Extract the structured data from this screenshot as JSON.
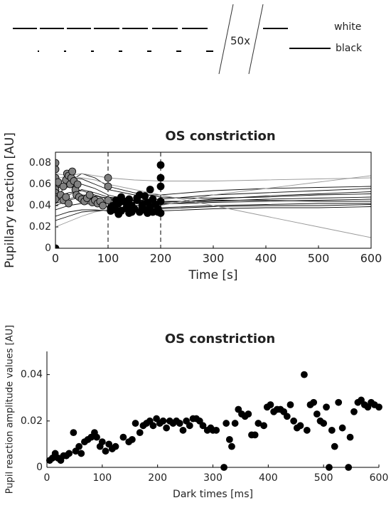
{
  "stimulus": {
    "repeat_label": "50x",
    "labels": [
      "white",
      "black"
    ]
  },
  "chart_data": [
    {
      "type": "line",
      "title": "OS constriction",
      "xlabel": "Time [s]",
      "ylabel": "Pupillary reaction [AU]",
      "xlim": [
        0,
        600
      ],
      "ylim": [
        0,
        0.09
      ],
      "xticks": [
        0,
        100,
        200,
        300,
        400,
        500,
        600
      ],
      "yticks": [
        0,
        0.02,
        0.04,
        0.06,
        0.08
      ],
      "vlines": [
        100,
        200
      ],
      "x": [
        0,
        25,
        50,
        75,
        100,
        150,
        200,
        250,
        300,
        400,
        500,
        600
      ],
      "series": [
        {
          "color": "#111111",
          "values": [
            0.044,
            0.05,
            0.055,
            0.052,
            0.048,
            0.045,
            0.046,
            0.048,
            0.05,
            0.052,
            0.054,
            0.056
          ]
        },
        {
          "color": "#111111",
          "values": [
            0.04,
            0.045,
            0.048,
            0.046,
            0.042,
            0.04,
            0.041,
            0.043,
            0.044,
            0.046,
            0.047,
            0.048
          ]
        },
        {
          "color": "#111111",
          "values": [
            0.05,
            0.058,
            0.06,
            0.056,
            0.05,
            0.044,
            0.042,
            0.042,
            0.043,
            0.044,
            0.045,
            0.046
          ]
        },
        {
          "color": "#111111",
          "values": [
            0.036,
            0.04,
            0.042,
            0.041,
            0.039,
            0.038,
            0.038,
            0.039,
            0.04,
            0.041,
            0.042,
            0.042
          ]
        },
        {
          "color": "#111111",
          "values": [
            0.06,
            0.066,
            0.065,
            0.06,
            0.055,
            0.05,
            0.05,
            0.052,
            0.054,
            0.056,
            0.057,
            0.058
          ]
        },
        {
          "color": "#111111",
          "values": [
            0.03,
            0.034,
            0.036,
            0.036,
            0.035,
            0.034,
            0.035,
            0.036,
            0.037,
            0.038,
            0.038,
            0.039
          ]
        },
        {
          "color": "#111111",
          "values": [
            0.055,
            0.062,
            0.07,
            0.066,
            0.058,
            0.052,
            0.048,
            0.047,
            0.047,
            0.048,
            0.05,
            0.051
          ]
        },
        {
          "color": "#111111",
          "values": [
            0.026,
            0.03,
            0.034,
            0.035,
            0.036,
            0.036,
            0.037,
            0.038,
            0.039,
            0.04,
            0.04,
            0.041
          ]
        },
        {
          "color": "#111111",
          "values": [
            0.048,
            0.052,
            0.054,
            0.05,
            0.046,
            0.043,
            0.043,
            0.044,
            0.046,
            0.049,
            0.051,
            0.053
          ]
        },
        {
          "color": "#111111",
          "values": [
            0.042,
            0.046,
            0.05,
            0.049,
            0.047,
            0.045,
            0.044,
            0.044,
            0.045,
            0.045,
            0.044,
            0.044
          ]
        },
        {
          "color": "#999999",
          "values": [
            0.065,
            0.068,
            0.07,
            0.068,
            0.066,
            0.064,
            0.063,
            0.063,
            0.063,
            0.064,
            0.065,
            0.066
          ]
        },
        {
          "color": "#999999",
          "values": [
            0.02,
            0.025,
            0.03,
            0.034,
            0.036,
            0.038,
            0.04,
            0.045,
            0.05,
            0.056,
            0.062,
            0.068
          ]
        },
        {
          "color": "#999999",
          "values": [
            0.07,
            0.068,
            0.066,
            0.064,
            0.06,
            0.055,
            0.05,
            0.045,
            0.04,
            0.03,
            0.02,
            0.01
          ]
        }
      ],
      "points": [
        {
          "color": "#808080",
          "x": [
            0,
            0,
            0,
            0,
            0,
            0,
            0,
            0,
            5,
            10,
            15,
            20,
            22,
            25,
            28,
            30,
            32,
            35,
            38,
            40,
            42,
            45,
            50,
            55,
            60,
            65,
            70,
            75,
            80,
            85,
            90,
            100,
            100,
            100,
            15,
            20,
            25
          ],
          "values": [
            0.08,
            0.074,
            0.066,
            0.058,
            0.055,
            0.052,
            0.048,
            0.046,
            0.062,
            0.05,
            0.058,
            0.064,
            0.07,
            0.068,
            0.06,
            0.066,
            0.072,
            0.063,
            0.055,
            0.05,
            0.06,
            0.048,
            0.046,
            0.044,
            0.047,
            0.05,
            0.043,
            0.045,
            0.042,
            0.044,
            0.04,
            0.066,
            0.058,
            0.045,
            0.045,
            0.048,
            0.042
          ]
        },
        {
          "color": "#000000",
          "x": [
            0,
            200,
            200,
            200,
            180,
            160,
            105,
            110,
            115,
            120,
            125,
            130,
            135,
            140,
            145,
            150,
            155,
            160,
            165,
            170,
            175,
            180,
            185,
            190,
            195,
            200,
            105,
            115,
            125,
            135,
            145,
            155,
            165,
            175,
            185,
            195,
            200,
            120,
            140,
            170
          ],
          "values": [
            0,
            0.078,
            0.066,
            0.058,
            0.055,
            0.05,
            0.038,
            0.04,
            0.036,
            0.042,
            0.035,
            0.044,
            0.038,
            0.033,
            0.04,
            0.037,
            0.045,
            0.034,
            0.041,
            0.036,
            0.043,
            0.039,
            0.034,
            0.041,
            0.037,
            0.044,
            0.035,
            0.045,
            0.048,
            0.042,
            0.034,
            0.047,
            0.039,
            0.033,
            0.046,
            0.034,
            0.033,
            0.032,
            0.046,
            0.049
          ]
        }
      ]
    },
    {
      "type": "scatter",
      "title": "OS constriction",
      "xlabel": "Dark times [ms]",
      "ylabel": "Pupil reaction amplitude values [AU]",
      "xlim": [
        0,
        600
      ],
      "ylim": [
        0,
        0.05
      ],
      "xticks": [
        0,
        100,
        200,
        300,
        400,
        500,
        600
      ],
      "yticks": [
        0,
        0.02,
        0.04
      ],
      "color": "#000000",
      "x": [
        5,
        10,
        15,
        20,
        25,
        30,
        35,
        40,
        48,
        52,
        58,
        62,
        68,
        74,
        80,
        86,
        90,
        96,
        100,
        106,
        112,
        118,
        124,
        138,
        148,
        154,
        160,
        168,
        174,
        180,
        186,
        192,
        198,
        204,
        210,
        216,
        222,
        228,
        234,
        240,
        246,
        252,
        258,
        264,
        270,
        276,
        282,
        290,
        296,
        300,
        306,
        320,
        324,
        330,
        334,
        340,
        346,
        352,
        358,
        364,
        370,
        376,
        382,
        392,
        398,
        404,
        410,
        416,
        422,
        428,
        434,
        440,
        446,
        452,
        458,
        465,
        470,
        476,
        482,
        488,
        494,
        500,
        505,
        510,
        515,
        520,
        527,
        534,
        545,
        548,
        555,
        562,
        568,
        574,
        580,
        586,
        592,
        600
      ],
      "values": [
        0.003,
        0.004,
        0.006,
        0.004,
        0.003,
        0.005,
        0.005,
        0.006,
        0.015,
        0.007,
        0.009,
        0.006,
        0.011,
        0.012,
        0.013,
        0.015,
        0.013,
        0.009,
        0.011,
        0.007,
        0.01,
        0.008,
        0.009,
        0.013,
        0.011,
        0.012,
        0.019,
        0.015,
        0.018,
        0.019,
        0.02,
        0.018,
        0.021,
        0.019,
        0.02,
        0.017,
        0.02,
        0.019,
        0.02,
        0.019,
        0.016,
        0.02,
        0.018,
        0.021,
        0.021,
        0.02,
        0.018,
        0.016,
        0.017,
        0.016,
        0.016,
        0.0,
        0.019,
        0.012,
        0.009,
        0.019,
        0.025,
        0.023,
        0.022,
        0.023,
        0.014,
        0.014,
        0.019,
        0.018,
        0.026,
        0.027,
        0.024,
        0.025,
        0.025,
        0.024,
        0.022,
        0.027,
        0.02,
        0.017,
        0.018,
        0.04,
        0.016,
        0.027,
        0.028,
        0.023,
        0.02,
        0.019,
        0.026,
        0.0,
        0.016,
        0.009,
        0.028,
        0.017,
        0.0,
        0.013,
        0.024,
        0.028,
        0.029,
        0.027,
        0.026,
        0.028,
        0.027,
        0.026
      ]
    }
  ]
}
